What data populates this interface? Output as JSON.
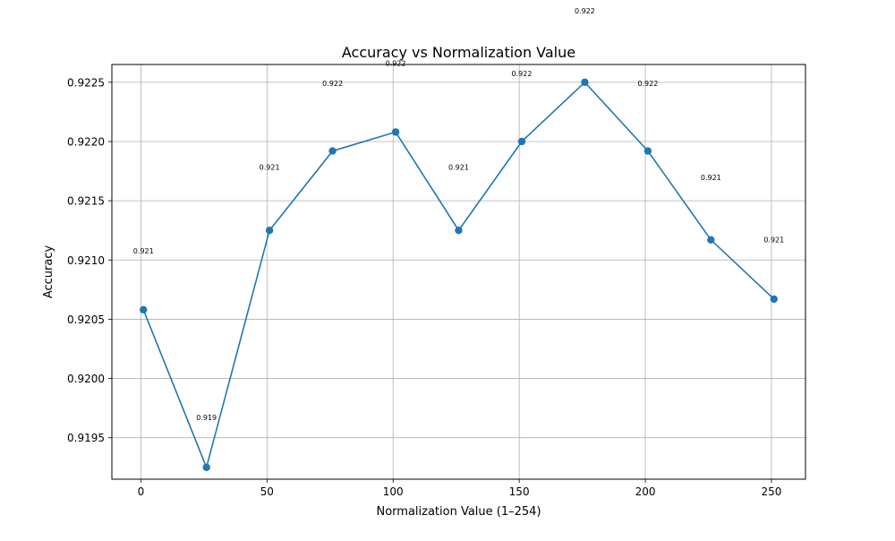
{
  "chart_data": {
    "type": "line",
    "title": "Accuracy vs Normalization Value",
    "xlabel": "Normalization Value (1–254)",
    "ylabel": "Accuracy",
    "x": [
      1,
      26,
      51,
      76,
      101,
      126,
      151,
      176,
      201,
      226,
      251
    ],
    "series": [
      {
        "values": [
          0.92058,
          0.91925,
          0.92125,
          0.92192,
          0.92208,
          0.92125,
          0.922,
          0.9225,
          0.92192,
          0.92117,
          0.92067
        ],
        "color": "#1f77b4",
        "marker": "circle"
      }
    ],
    "data_labels": [
      "0.921",
      "0.919",
      "0.921",
      "0.922",
      "0.922",
      "0.921",
      "0.922",
      "0.922",
      "0.922",
      "0.921",
      "0.921"
    ],
    "xlim": [
      -11.5,
      263.5
    ],
    "ylim": [
      0.91915,
      0.92265
    ],
    "xticks": [
      0,
      50,
      100,
      150,
      200,
      250
    ],
    "yticks": [
      0.9195,
      0.92,
      0.9205,
      0.921,
      0.9215,
      0.922,
      0.9225
    ],
    "ytick_labels": [
      "0.9195",
      "0.9200",
      "0.9205",
      "0.9210",
      "0.9215",
      "0.9220",
      "0.9225"
    ],
    "grid": true,
    "legend": false
  }
}
